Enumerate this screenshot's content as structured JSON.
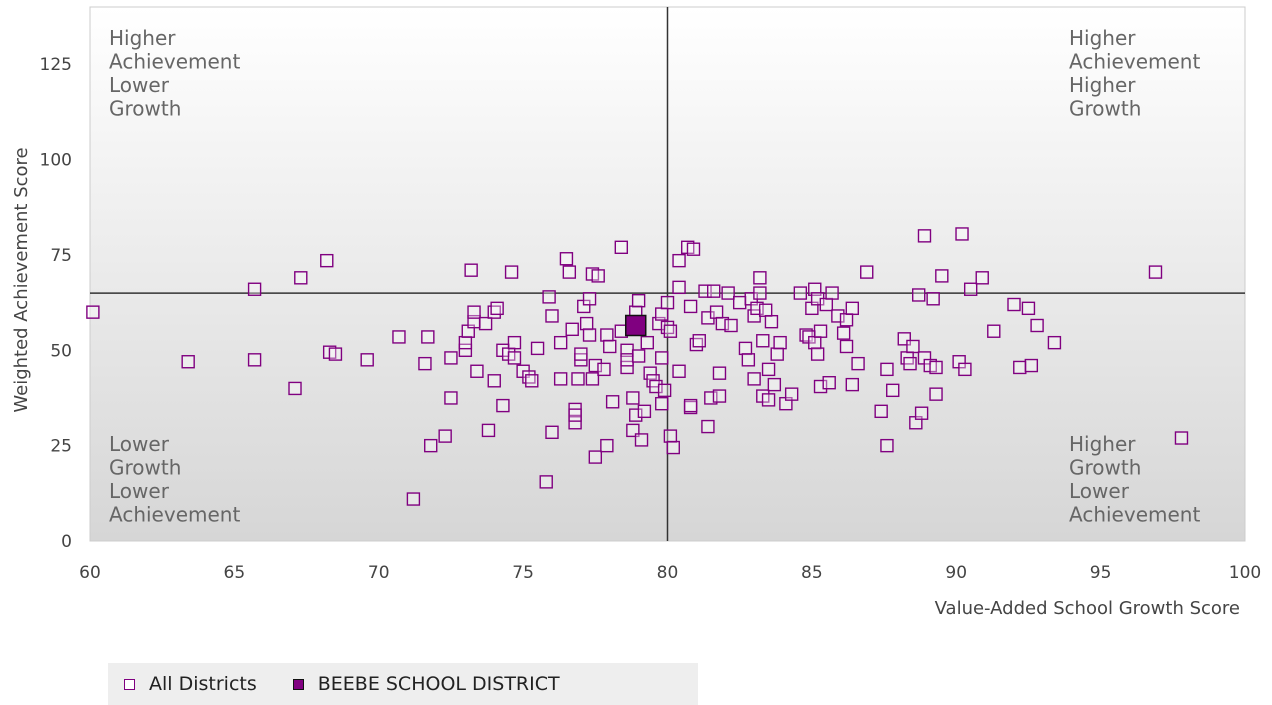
{
  "chart_data": {
    "type": "scatter",
    "xlabel": "Value-Added School Growth Score",
    "ylabel": "Weighted Achievement Score",
    "xlim": [
      60,
      100
    ],
    "ylim": [
      0,
      140
    ],
    "x_ticks": [
      60,
      65,
      70,
      75,
      80,
      85,
      90,
      95,
      100
    ],
    "y_ticks": [
      0,
      25,
      50,
      75,
      100,
      125
    ],
    "reference_lines": {
      "x": 80,
      "y": 65
    },
    "quadrant_labels": {
      "top_left": [
        "Higher",
        "Achievement",
        "Lower",
        "Growth"
      ],
      "top_right": [
        "Higher",
        "Achievement",
        "Higher",
        "Growth"
      ],
      "bottom_left": [
        "Lower",
        "Growth",
        "Lower",
        "Achievement"
      ],
      "bottom_right": [
        "Higher",
        "Growth",
        "Lower",
        "Achievement"
      ]
    },
    "legend_position": "bottom-left",
    "series": [
      {
        "name": "All Districts",
        "color": "#800080",
        "marker": "hollow-square",
        "points": [
          [
            60.1,
            60
          ],
          [
            63.4,
            47
          ],
          [
            65.7,
            66
          ],
          [
            65.7,
            47.5
          ],
          [
            67.1,
            40
          ],
          [
            67.3,
            69
          ],
          [
            68.2,
            73.5
          ],
          [
            68.3,
            49.5
          ],
          [
            68.5,
            49
          ],
          [
            69.6,
            47.5
          ],
          [
            70.7,
            53.5
          ],
          [
            71.2,
            11
          ],
          [
            71.7,
            53.5
          ],
          [
            71.6,
            46.5
          ],
          [
            71.8,
            25
          ],
          [
            72.3,
            27.5
          ],
          [
            72.5,
            48
          ],
          [
            72.5,
            37.5
          ],
          [
            73,
            50
          ],
          [
            73,
            52
          ],
          [
            73.1,
            55
          ],
          [
            73.2,
            71
          ],
          [
            73.3,
            57.5
          ],
          [
            73.3,
            60
          ],
          [
            73.4,
            44.5
          ],
          [
            73.7,
            57
          ],
          [
            73.8,
            29
          ],
          [
            74,
            60
          ],
          [
            74,
            42
          ],
          [
            74.1,
            61
          ],
          [
            74.3,
            35.5
          ],
          [
            74.3,
            50
          ],
          [
            74.5,
            49
          ],
          [
            74.6,
            70.5
          ],
          [
            74.7,
            52
          ],
          [
            74.7,
            48
          ],
          [
            75,
            44.5
          ],
          [
            75.2,
            43
          ],
          [
            75.3,
            42
          ],
          [
            75.5,
            50.5
          ],
          [
            75.8,
            15.5
          ],
          [
            75.9,
            64
          ],
          [
            76,
            28.5
          ],
          [
            76,
            59
          ],
          [
            76.3,
            52
          ],
          [
            76.3,
            42.5
          ],
          [
            76.5,
            74
          ],
          [
            76.6,
            70.5
          ],
          [
            76.7,
            55.5
          ],
          [
            76.8,
            34.5
          ],
          [
            76.8,
            31
          ],
          [
            76.8,
            33
          ],
          [
            76.9,
            42.5
          ],
          [
            77,
            47.5
          ],
          [
            77,
            49
          ],
          [
            77.1,
            61.5
          ],
          [
            77.2,
            57
          ],
          [
            77.3,
            63.5
          ],
          [
            77.3,
            54
          ],
          [
            77.4,
            70
          ],
          [
            77.4,
            42.5
          ],
          [
            77.5,
            22
          ],
          [
            77.5,
            46
          ],
          [
            77.6,
            69.5
          ],
          [
            77.8,
            45
          ],
          [
            77.9,
            54
          ],
          [
            77.9,
            25
          ],
          [
            78,
            51
          ],
          [
            78.1,
            36.5
          ],
          [
            78.4,
            77
          ],
          [
            78.4,
            55
          ],
          [
            78.6,
            50
          ],
          [
            78.6,
            45.5
          ],
          [
            78.6,
            47.5
          ],
          [
            78.8,
            29
          ],
          [
            78.8,
            37.5
          ],
          [
            78.9,
            60
          ],
          [
            78.9,
            33
          ],
          [
            79,
            63
          ],
          [
            79,
            48.5
          ],
          [
            79.1,
            26.5
          ],
          [
            79.2,
            34
          ],
          [
            79.3,
            52
          ],
          [
            79.4,
            44
          ],
          [
            79.5,
            42
          ],
          [
            79.6,
            40.5
          ],
          [
            79.7,
            57
          ],
          [
            79.8,
            36
          ],
          [
            79.8,
            59.5
          ],
          [
            79.8,
            48
          ],
          [
            79.9,
            39.5
          ],
          [
            80,
            56
          ],
          [
            80,
            62.5
          ],
          [
            80.1,
            55
          ],
          [
            80.1,
            27.5
          ],
          [
            80.2,
            24.5
          ],
          [
            80.4,
            66.5
          ],
          [
            80.4,
            73.5
          ],
          [
            80.4,
            44.5
          ],
          [
            80.7,
            77
          ],
          [
            80.8,
            35
          ],
          [
            80.8,
            61.5
          ],
          [
            80.8,
            35.5
          ],
          [
            80.9,
            76.5
          ],
          [
            81,
            51.5
          ],
          [
            81.1,
            52.5
          ],
          [
            81.3,
            65.5
          ],
          [
            81.4,
            30
          ],
          [
            81.4,
            58.5
          ],
          [
            81.5,
            37.5
          ],
          [
            81.6,
            65.5
          ],
          [
            81.7,
            60
          ],
          [
            81.8,
            44
          ],
          [
            81.8,
            38
          ],
          [
            81.9,
            57
          ],
          [
            82.1,
            65
          ],
          [
            82.2,
            56.5
          ],
          [
            82.5,
            62.5
          ],
          [
            82.7,
            50.5
          ],
          [
            82.8,
            47.5
          ],
          [
            82.9,
            63.5
          ],
          [
            83,
            42.5
          ],
          [
            83,
            59
          ],
          [
            83.1,
            61
          ],
          [
            83.2,
            69
          ],
          [
            83.2,
            65
          ],
          [
            83.3,
            52.5
          ],
          [
            83.3,
            38
          ],
          [
            83.4,
            60.5
          ],
          [
            83.5,
            45
          ],
          [
            83.5,
            37
          ],
          [
            83.6,
            57.5
          ],
          [
            83.7,
            41
          ],
          [
            83.8,
            49
          ],
          [
            83.9,
            52
          ],
          [
            84.1,
            36
          ],
          [
            84.3,
            38.5
          ],
          [
            84.6,
            65
          ],
          [
            84.8,
            54
          ],
          [
            84.9,
            53.5
          ],
          [
            85,
            61
          ],
          [
            85.1,
            66
          ],
          [
            85.2,
            63.5
          ],
          [
            85.1,
            52
          ],
          [
            85.2,
            49
          ],
          [
            85.3,
            55
          ],
          [
            85.3,
            40.5
          ],
          [
            85.5,
            62
          ],
          [
            85.6,
            41.5
          ],
          [
            85.7,
            65
          ],
          [
            85.9,
            59
          ],
          [
            86.1,
            54.5
          ],
          [
            86.2,
            58
          ],
          [
            86.2,
            51
          ],
          [
            86.4,
            61
          ],
          [
            86.4,
            41
          ],
          [
            86.6,
            46.5
          ],
          [
            86.9,
            70.5
          ],
          [
            87.4,
            34
          ],
          [
            87.6,
            45
          ],
          [
            87.6,
            25
          ],
          [
            87.8,
            39.5
          ],
          [
            88.2,
            53
          ],
          [
            88.3,
            48
          ],
          [
            88.4,
            46.5
          ],
          [
            88.5,
            51
          ],
          [
            88.6,
            31
          ],
          [
            88.7,
            64.5
          ],
          [
            88.8,
            33.5
          ],
          [
            88.9,
            48
          ],
          [
            88.9,
            80
          ],
          [
            89.1,
            46
          ],
          [
            89.2,
            63.5
          ],
          [
            89.3,
            45.5
          ],
          [
            89.3,
            38.5
          ],
          [
            89.5,
            69.5
          ],
          [
            90.1,
            47
          ],
          [
            90.2,
            80.5
          ],
          [
            90.3,
            45
          ],
          [
            90.5,
            66
          ],
          [
            90.9,
            69
          ],
          [
            91.3,
            55
          ],
          [
            92,
            62
          ],
          [
            92.2,
            45.5
          ],
          [
            92.5,
            61
          ],
          [
            92.6,
            46
          ],
          [
            92.8,
            56.5
          ],
          [
            93.4,
            52
          ],
          [
            96.9,
            70.5
          ],
          [
            97.8,
            27
          ]
        ]
      },
      {
        "name": "BEEBE SCHOOL DISTRICT",
        "color": "#800080",
        "marker": "filled-square",
        "points": [
          [
            78.9,
            56.5
          ]
        ]
      }
    ]
  }
}
